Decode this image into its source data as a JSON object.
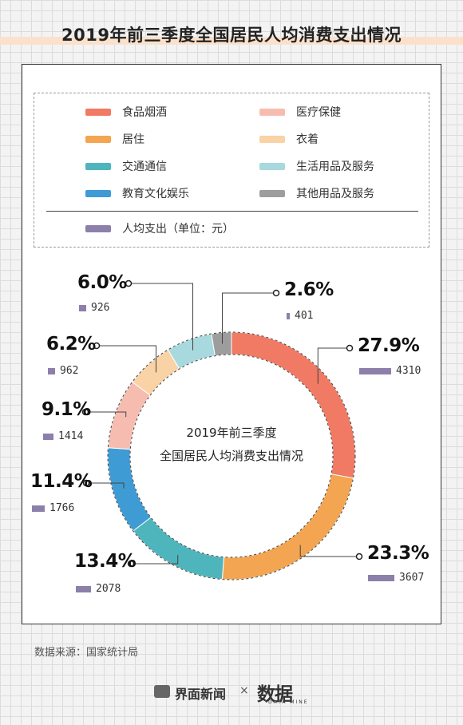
{
  "header": {
    "title": "2019年前三季度全国居民人均消费支出情况"
  },
  "legend": {
    "items": [
      {
        "label": "食品烟酒",
        "color": "#f07a63"
      },
      {
        "label": "医疗保健",
        "color": "#f7bcb0"
      },
      {
        "label": "居住",
        "color": "#f3a551"
      },
      {
        "label": "衣着",
        "color": "#f9d2a6"
      },
      {
        "label": "交通通信",
        "color": "#4fb5bd"
      },
      {
        "label": "生活用品及服务",
        "color": "#a8d9de"
      },
      {
        "label": "教育文化娱乐",
        "color": "#3f9bd4"
      },
      {
        "label": "其他用品及服务",
        "color": "#9d9d9d"
      }
    ],
    "amount_item": {
      "label": "人均支出（单位：元）",
      "color": "#8c80aa"
    }
  },
  "chart_data": {
    "type": "pie",
    "style": "donut",
    "center_label_lines": [
      "2019年前三季度",
      "全国居民人均消费支出情况"
    ],
    "unit": "元",
    "slices": [
      {
        "name": "食品烟酒",
        "percent": "27.9%",
        "value": 4310,
        "color": "#f07a63"
      },
      {
        "name": "居住",
        "percent": "23.3%",
        "value": 3607,
        "color": "#f3a551"
      },
      {
        "name": "交通通信",
        "percent": "13.4%",
        "value": 2078,
        "color": "#4fb5bd"
      },
      {
        "name": "教育文化娱乐",
        "percent": "11.4%",
        "value": 1766,
        "color": "#3f9bd4"
      },
      {
        "name": "医疗保健",
        "percent": "9.1%",
        "value": 1414,
        "color": "#f7bcb0"
      },
      {
        "name": "衣着",
        "percent": "6.2%",
        "value": 962,
        "color": "#f9d2a6"
      },
      {
        "name": "生活用品及服务",
        "percent": "6.0%",
        "value": 926,
        "color": "#a8d9de"
      },
      {
        "name": "其他用品及服务",
        "percent": "2.6%",
        "value": 401,
        "color": "#9d9d9d"
      }
    ]
  },
  "source": {
    "text": "数据来源：国家统计局"
  },
  "footer": {
    "brand1": "界面新闻",
    "separator": "×",
    "brand2": "数据",
    "brand2_sub": "DATA MINE"
  }
}
